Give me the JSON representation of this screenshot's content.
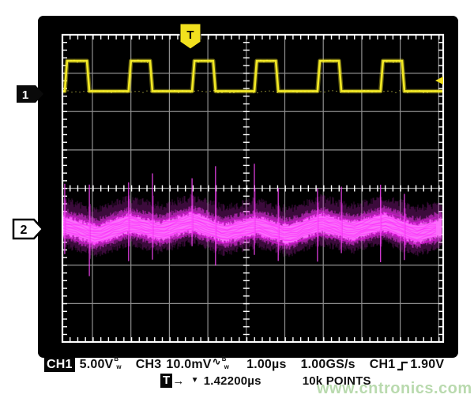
{
  "watermark": "www.cntronics.com",
  "screen": {
    "trigger_flag": "T",
    "ch1_marker": "1",
    "ch2_marker": "2"
  },
  "readout_row1": {
    "ch1_badge": "CH1",
    "ch1_scale": "5.00V",
    "ch1_bw_sup": "B",
    "ch1_bw_sub": "w",
    "ch3_label": "CH3",
    "ch3_scale": "10.0mV",
    "ch3_coupling": "∿",
    "ch3_bw_sup": "B",
    "ch3_bw_sub": "w",
    "timebase": "1.00µs",
    "sample_rate": "1.00GS/s",
    "trig_source": "CH1",
    "trig_level": "1.90V"
  },
  "readout_row2": {
    "badge": "T",
    "arrow": "→",
    "marker": "▼",
    "trig_time": "1.42200µs",
    "record": "10k POINTS"
  },
  "chart_data": {
    "type": "line",
    "title": "Oscilloscope hardcopy: CH1 switching waveform and CH3 output ripple",
    "x_axis": {
      "units": "µs",
      "seconds_per_div": "1.00µs",
      "divisions": 10,
      "sample_rate": "1.00GS/s",
      "record_length": "10k POINTS"
    },
    "y_axis": {
      "divisions": 8
    },
    "grid": {
      "style": "full grid with minor ticks on borders and center axes",
      "minor_per_div": 5
    },
    "trigger": {
      "source": "CH1",
      "slope": "rising",
      "level": "1.90V",
      "readout_time": "1.42200µs",
      "flag_position_div_from_left": 3.33
    },
    "series": [
      {
        "name": "CH1",
        "color": "#f2e824",
        "scale": "5.00V/div",
        "bandwidth_limit": true,
        "shape": "square-wave",
        "low_V": 0.0,
        "high_V": 4.0,
        "period_us": 1.66,
        "pulse_width_us": 0.62,
        "pulses_us": [
          [
            0.06,
            0.7
          ],
          [
            1.72,
            2.34
          ],
          [
            3.37,
            3.98
          ],
          [
            4.99,
            5.61
          ],
          [
            6.63,
            7.25
          ],
          [
            8.27,
            8.89
          ]
        ],
        "baseline_div_from_top": 1.47,
        "high_div_from_top": 0.68
      },
      {
        "name": "CH3",
        "color": "#f030f0",
        "scale": "10.0mV/div",
        "coupling": "AC",
        "bandwidth_limit": true,
        "shape": "noise-ripple-band",
        "center_div_from_top": 5.04,
        "band_halfwidth_div": 0.45,
        "ripple_wobble_div": 0.12,
        "edge_spikes": {
          "aligned_with": "CH1 edges",
          "up_div": 1.6,
          "down_div": 1.1
        }
      }
    ]
  }
}
